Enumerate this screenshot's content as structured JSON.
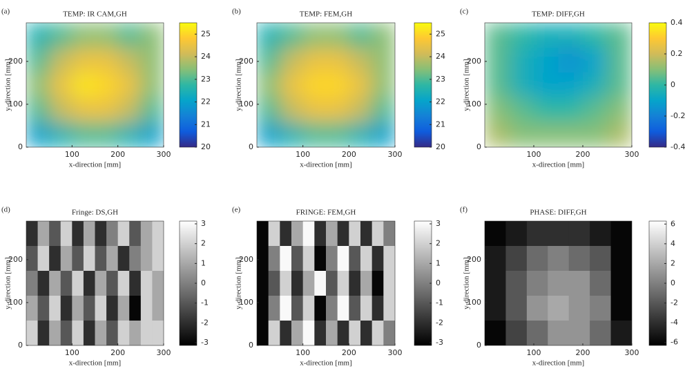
{
  "chart_data": [
    {
      "type": "heatmap",
      "panel_label": "(a)",
      "title": "TEMP: IR CAM,GH",
      "xlabel": "x-direction [mm]",
      "ylabel": "y-direction [mm]",
      "xlim": [
        0,
        300
      ],
      "ylim": [
        0,
        290
      ],
      "xticks": [
        100,
        200,
        300
      ],
      "yticks": [
        0,
        100,
        200
      ],
      "colormap": "parula",
      "clim": [
        20,
        25.5
      ],
      "cticks": [
        20,
        21,
        22,
        23,
        24,
        25
      ],
      "z": [
        [
          22.5,
          23,
          23.5,
          23.5,
          23,
          23.5
        ],
        [
          23,
          24,
          24.5,
          24.5,
          24,
          23.5
        ],
        [
          23.5,
          24.5,
          25.2,
          25,
          24.5,
          23.5
        ],
        [
          23,
          24,
          24.5,
          24.5,
          24,
          23
        ],
        [
          22,
          22.5,
          23,
          23,
          22.5,
          22
        ]
      ]
    },
    {
      "type": "heatmap",
      "panel_label": "(b)",
      "title": "TEMP: FEM,GH",
      "xlabel": "x-direction [mm]",
      "ylabel": "y-direction [mm]",
      "xlim": [
        0,
        300
      ],
      "ylim": [
        0,
        290
      ],
      "xticks": [
        100,
        200,
        300
      ],
      "yticks": [
        0,
        100,
        200
      ],
      "colormap": "parula",
      "clim": [
        20,
        25.5
      ],
      "cticks": [
        20,
        21,
        22,
        23,
        24,
        25
      ],
      "z": [
        [
          22.5,
          23,
          23.5,
          23.5,
          23,
          23.5
        ],
        [
          23,
          24,
          24.5,
          24.5,
          24,
          23.5
        ],
        [
          23.5,
          24.5,
          25,
          25,
          24.5,
          23.5
        ],
        [
          23,
          24,
          24.5,
          24.5,
          24,
          23
        ],
        [
          22,
          22.5,
          23,
          23,
          22.5,
          22
        ]
      ]
    },
    {
      "type": "heatmap",
      "panel_label": "(c)",
      "title": "TEMP: DIFF,GH",
      "xlabel": "x-direction [mm]",
      "ylabel": "y-direction [mm]",
      "xlim": [
        0,
        300
      ],
      "ylim": [
        0,
        290
      ],
      "xticks": [
        100,
        200,
        300
      ],
      "yticks": [
        0,
        100,
        200
      ],
      "colormap": "parula",
      "clim": [
        -0.4,
        0.4
      ],
      "cticks": [
        -0.4,
        -0.2,
        0,
        0.2,
        0.4
      ],
      "z": [
        [
          0.05,
          0,
          -0.05,
          -0.05,
          0,
          0.05
        ],
        [
          0.05,
          -0.05,
          -0.1,
          -0.15,
          -0.1,
          0.05
        ],
        [
          0.05,
          -0.05,
          -0.1,
          -0.1,
          -0.05,
          0.05
        ],
        [
          0.1,
          0.05,
          0,
          0,
          0.05,
          0.1
        ],
        [
          0.15,
          0.1,
          0.1,
          0.1,
          0.1,
          0.15
        ]
      ]
    },
    {
      "type": "heatmap",
      "panel_label": "(d)",
      "title": "Fringe: DS,GH",
      "xlabel": "x-direction [mm]",
      "ylabel": "y-direction [mm]",
      "xlim": [
        0,
        300
      ],
      "ylim": [
        0,
        290
      ],
      "xticks": [
        100,
        200,
        300
      ],
      "yticks": [
        0,
        100,
        200
      ],
      "colormap": "gray",
      "clim": [
        -3.14,
        3.14
      ],
      "cticks": [
        -3,
        -2,
        -1,
        0,
        1,
        2,
        3
      ],
      "z": [
        [
          -2,
          1,
          -1,
          2,
          -2,
          1,
          -2,
          0,
          2,
          -1,
          1,
          2
        ],
        [
          -1,
          2,
          -2,
          1,
          -1,
          2,
          -1,
          1,
          -2,
          0,
          1,
          2
        ],
        [
          0,
          -2,
          1,
          -1,
          2,
          -2,
          1,
          -1,
          2,
          -2,
          2,
          1
        ],
        [
          1,
          -1,
          2,
          -2,
          1,
          -1,
          2,
          -2,
          1,
          -3,
          2,
          1
        ],
        [
          2,
          -2,
          1,
          -1,
          2,
          -2,
          1,
          -1,
          2,
          1,
          2,
          2
        ]
      ]
    },
    {
      "type": "heatmap",
      "panel_label": "(e)",
      "title": "FRINGE: FEM,GH",
      "xlabel": "x-direction [mm]",
      "ylabel": "y-direction [mm]",
      "xlim": [
        0,
        300
      ],
      "ylim": [
        0,
        290
      ],
      "xticks": [
        100,
        200,
        300
      ],
      "yticks": [
        0,
        100,
        200
      ],
      "colormap": "gray",
      "clim": [
        -3.14,
        3.14
      ],
      "cticks": [
        -3,
        -2,
        -1,
        0,
        1,
        2,
        3
      ],
      "z": [
        [
          -3,
          2,
          -2,
          1,
          3,
          -2,
          1,
          -2,
          2,
          -2,
          2,
          0
        ],
        [
          -3,
          0,
          3,
          -1,
          2,
          -3,
          0,
          3,
          -1,
          2,
          -2,
          2
        ],
        [
          -3,
          -1,
          2,
          -2,
          1,
          3,
          -1,
          2,
          -2,
          1,
          -3,
          2
        ],
        [
          -3,
          0,
          3,
          -1,
          2,
          -3,
          0,
          3,
          -1,
          2,
          -2,
          2
        ],
        [
          -3,
          2,
          -2,
          1,
          3,
          -2,
          1,
          -2,
          2,
          -2,
          2,
          0
        ]
      ]
    },
    {
      "type": "heatmap",
      "panel_label": "(f)",
      "title": "PHASE: DIFF,GH",
      "xlabel": "x-direction [mm]",
      "ylabel": "y-direction [mm]",
      "xlim": [
        0,
        300
      ],
      "ylim": [
        0,
        290
      ],
      "xticks": [
        100,
        200,
        300
      ],
      "yticks": [
        0,
        100,
        200
      ],
      "colormap": "gray",
      "clim": [
        -6.3,
        6.3
      ],
      "cticks": [
        -6,
        -4,
        -2,
        0,
        2,
        4,
        6
      ],
      "z": [
        [
          -6,
          -5,
          -4,
          -4,
          -4,
          -5,
          -6
        ],
        [
          -5,
          -3,
          -1,
          0,
          -1,
          -2,
          -6
        ],
        [
          -5,
          -2,
          0,
          1,
          1,
          -1,
          -6
        ],
        [
          -5,
          -2,
          1,
          2,
          1,
          0,
          -6
        ],
        [
          -6,
          -3,
          -1,
          1,
          1,
          -1,
          -5
        ]
      ]
    }
  ]
}
